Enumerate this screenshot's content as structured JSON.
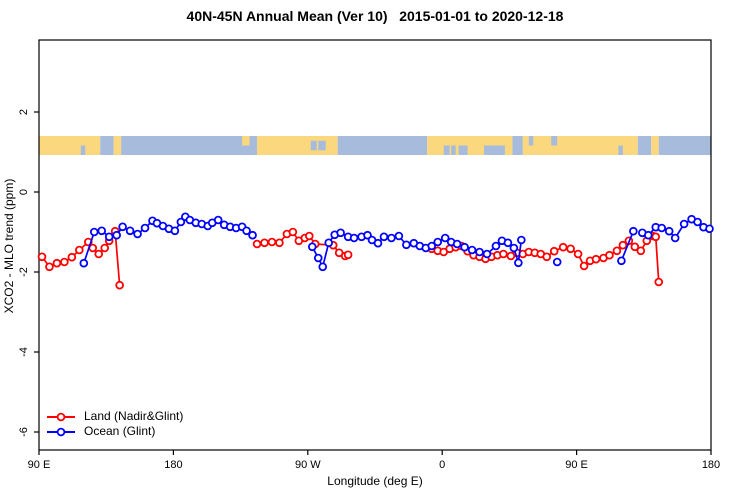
{
  "title": "40N-45N Annual Mean (Ver 10)   2015-01-01 to 2020-12-18",
  "legend": {
    "items": [
      {
        "label": "Land (Nadir&Glint)",
        "color": "#ff0000"
      },
      {
        "label": "Ocean (Glint)",
        "color": "#0000ff"
      }
    ]
  },
  "colors": {
    "land_series": "#ff0000",
    "ocean_series": "#0000ff",
    "band_land": "#fbd77e",
    "band_ocean": "#a7bcdc",
    "axis": "#000000",
    "background": "#ffffff"
  },
  "chart_data": {
    "type": "line",
    "title": "40N-45N Annual Mean (Ver 10)   2015-01-01 to 2020-12-18",
    "xlabel": "Longitude (deg E)",
    "ylabel": "XCO2 - MLO trend (ppm)",
    "xlim": [
      90,
      540
    ],
    "ylim": [
      -6.45,
      3.8
    ],
    "grid": false,
    "legend_position": "bottom-left",
    "x_ticks": [
      {
        "value": 90,
        "label": "90 E"
      },
      {
        "value": 180,
        "label": "180"
      },
      {
        "value": 270,
        "label": "90 W"
      },
      {
        "value": 360,
        "label": "0"
      },
      {
        "value": 450,
        "label": "90 E"
      },
      {
        "value": 540,
        "label": "180"
      }
    ],
    "y_ticks": [
      {
        "value": 2,
        "label": "2"
      },
      {
        "value": 0,
        "label": "0"
      },
      {
        "value": -2,
        "label": "-2"
      },
      {
        "value": -4,
        "label": "-4"
      },
      {
        "value": -6,
        "label": "-6"
      }
    ],
    "series": [
      {
        "name": "Land (Nadir&Glint)",
        "color": "#ff0000",
        "marker": "open-circle",
        "segments": [
          [
            [
              92,
              -1.62
            ],
            [
              97,
              -1.87
            ],
            [
              102,
              -1.78
            ],
            [
              107,
              -1.75
            ],
            [
              112,
              -1.63
            ],
            [
              117,
              -1.45
            ],
            [
              123,
              -1.25
            ],
            [
              126,
              -1.4
            ],
            [
              130,
              -1.55
            ],
            [
              134,
              -1.4
            ],
            [
              137,
              -1.22
            ],
            [
              141,
              -0.98
            ],
            [
              144,
              -2.33
            ]
          ],
          [
            [
              236,
              -1.3
            ],
            [
              241,
              -1.27
            ],
            [
              246,
              -1.25
            ],
            [
              251,
              -1.27
            ],
            [
              256,
              -1.05
            ],
            [
              260,
              -1.0
            ],
            [
              264,
              -1.22
            ],
            [
              268,
              -1.15
            ],
            [
              271,
              -1.1
            ],
            [
              275,
              -1.3
            ],
            [
              287,
              -1.33
            ],
            [
              291,
              -1.52
            ],
            [
              295,
              -1.6
            ],
            [
              297,
              -1.57
            ]
          ],
          [
            [
              353,
              -1.42
            ],
            [
              357,
              -1.47
            ],
            [
              361,
              -1.5
            ],
            [
              365,
              -1.42
            ],
            [
              369,
              -1.38
            ],
            [
              373,
              -1.35
            ],
            [
              377,
              -1.48
            ],
            [
              381,
              -1.58
            ],
            [
              385,
              -1.62
            ],
            [
              389,
              -1.67
            ],
            [
              393,
              -1.62
            ],
            [
              397,
              -1.58
            ],
            [
              401,
              -1.55
            ],
            [
              406,
              -1.6
            ],
            [
              410,
              -1.52
            ],
            [
              414,
              -1.55
            ],
            [
              418,
              -1.5
            ],
            [
              422,
              -1.52
            ],
            [
              426,
              -1.55
            ],
            [
              430,
              -1.62
            ],
            [
              435,
              -1.48
            ],
            [
              441,
              -1.38
            ],
            [
              446,
              -1.42
            ],
            [
              451,
              -1.55
            ],
            [
              455,
              -1.85
            ],
            [
              459,
              -1.72
            ],
            [
              463,
              -1.68
            ],
            [
              468,
              -1.65
            ],
            [
              472,
              -1.58
            ],
            [
              477,
              -1.47
            ],
            [
              481,
              -1.33
            ],
            [
              485,
              -1.22
            ],
            [
              489,
              -1.37
            ],
            [
              493,
              -1.47
            ],
            [
              497,
              -1.22
            ],
            [
              501,
              -1.1
            ],
            [
              503,
              -1.12
            ],
            [
              505,
              -2.25
            ]
          ]
        ]
      },
      {
        "name": "Ocean (Glint)",
        "color": "#0000ff",
        "marker": "open-circle",
        "segments": [
          [
            [
              120,
              -1.78
            ],
            [
              127,
              -1.0
            ],
            [
              132,
              -0.97
            ],
            [
              137,
              -1.12
            ],
            [
              142,
              -1.08
            ],
            [
              146,
              -0.87
            ],
            [
              151,
              -0.97
            ],
            [
              156,
              -1.05
            ],
            [
              161,
              -0.9
            ],
            [
              166,
              -0.72
            ],
            [
              169,
              -0.78
            ],
            [
              173,
              -0.85
            ],
            [
              177,
              -0.92
            ],
            [
              181,
              -0.97
            ],
            [
              185,
              -0.75
            ],
            [
              188,
              -0.62
            ],
            [
              191,
              -0.7
            ],
            [
              195,
              -0.77
            ],
            [
              199,
              -0.8
            ],
            [
              203,
              -0.85
            ],
            [
              206,
              -0.77
            ],
            [
              210,
              -0.7
            ],
            [
              214,
              -0.82
            ],
            [
              218,
              -0.87
            ],
            [
              222,
              -0.9
            ],
            [
              226,
              -0.87
            ],
            [
              229,
              -0.97
            ],
            [
              233,
              -1.08
            ]
          ],
          [
            [
              273,
              -1.37
            ],
            [
              277,
              -1.65
            ],
            [
              280,
              -1.87
            ],
            [
              284,
              -1.27
            ],
            [
              288,
              -1.07
            ],
            [
              292,
              -1.02
            ],
            [
              297,
              -1.12
            ],
            [
              301,
              -1.15
            ],
            [
              306,
              -1.12
            ],
            [
              310,
              -1.08
            ],
            [
              313,
              -1.2
            ],
            [
              317,
              -1.28
            ],
            [
              321,
              -1.12
            ],
            [
              326,
              -1.15
            ],
            [
              331,
              -1.1
            ],
            [
              336,
              -1.32
            ],
            [
              341,
              -1.28
            ],
            [
              345,
              -1.35
            ],
            [
              349,
              -1.4
            ],
            [
              353,
              -1.35
            ],
            [
              357,
              -1.25
            ],
            [
              362,
              -1.15
            ],
            [
              366,
              -1.25
            ],
            [
              370,
              -1.3
            ],
            [
              375,
              -1.38
            ],
            [
              380,
              -1.45
            ],
            [
              385,
              -1.5
            ],
            [
              390,
              -1.55
            ],
            [
              396,
              -1.35
            ],
            [
              400,
              -1.22
            ],
            [
              404,
              -1.27
            ],
            [
              408,
              -1.4
            ],
            [
              411,
              -1.77
            ],
            [
              413,
              -1.2
            ]
          ],
          [
            [
              437,
              -1.75
            ]
          ],
          [
            [
              480,
              -1.72
            ],
            [
              488,
              -0.98
            ]
          ],
          [
            [
              494,
              -1.02
            ],
            [
              498,
              -1.08
            ],
            [
              503,
              -0.88
            ],
            [
              507,
              -0.9
            ],
            [
              512,
              -0.98
            ],
            [
              516,
              -1.15
            ],
            [
              522,
              -0.8
            ],
            [
              527,
              -0.68
            ],
            [
              531,
              -0.75
            ],
            [
              535,
              -0.88
            ],
            [
              539,
              -0.92
            ]
          ]
        ]
      }
    ],
    "surface_band": {
      "description": "land/ocean strip map of the 40N-45N latitude band",
      "value_top": 1.4,
      "value_bottom": 0.925,
      "land_color": "#fbd77e",
      "ocean_color": "#a7bcdc",
      "segments": [
        {
          "from": 90,
          "to": 131,
          "surface": "land"
        },
        {
          "from": 131,
          "to": 140,
          "surface": "ocean"
        },
        {
          "from": 140,
          "to": 145,
          "surface": "land"
        },
        {
          "from": 145,
          "to": 236,
          "surface": "ocean"
        },
        {
          "from": 236,
          "to": 290,
          "surface": "land"
        },
        {
          "from": 290,
          "to": 350,
          "surface": "ocean"
        },
        {
          "from": 350,
          "to": 407,
          "surface": "land"
        },
        {
          "from": 407,
          "to": 414,
          "surface": "ocean"
        },
        {
          "from": 414,
          "to": 491,
          "surface": "land"
        },
        {
          "from": 491,
          "to": 500,
          "surface": "ocean"
        },
        {
          "from": 500,
          "to": 505,
          "surface": "land"
        },
        {
          "from": 505,
          "to": 540,
          "surface": "ocean"
        }
      ],
      "patches": [
        {
          "from": 118,
          "to": 121,
          "surface": "ocean",
          "part": "bottom"
        },
        {
          "from": 226,
          "to": 231,
          "surface": "land",
          "part": "top"
        },
        {
          "from": 272,
          "to": 276,
          "surface": "ocean",
          "part": "mid"
        },
        {
          "from": 277,
          "to": 282,
          "surface": "ocean",
          "part": "mid"
        },
        {
          "from": 361,
          "to": 365,
          "surface": "ocean",
          "part": "bottom"
        },
        {
          "from": 366,
          "to": 369,
          "surface": "ocean",
          "part": "bottom"
        },
        {
          "from": 371,
          "to": 377,
          "surface": "ocean",
          "part": "bottom"
        },
        {
          "from": 388,
          "to": 402,
          "surface": "ocean",
          "part": "bottom"
        },
        {
          "from": 418,
          "to": 421,
          "surface": "ocean",
          "part": "top"
        },
        {
          "from": 433,
          "to": 437,
          "surface": "ocean",
          "part": "top"
        },
        {
          "from": 478,
          "to": 481,
          "surface": "ocean",
          "part": "bottom"
        }
      ]
    }
  }
}
